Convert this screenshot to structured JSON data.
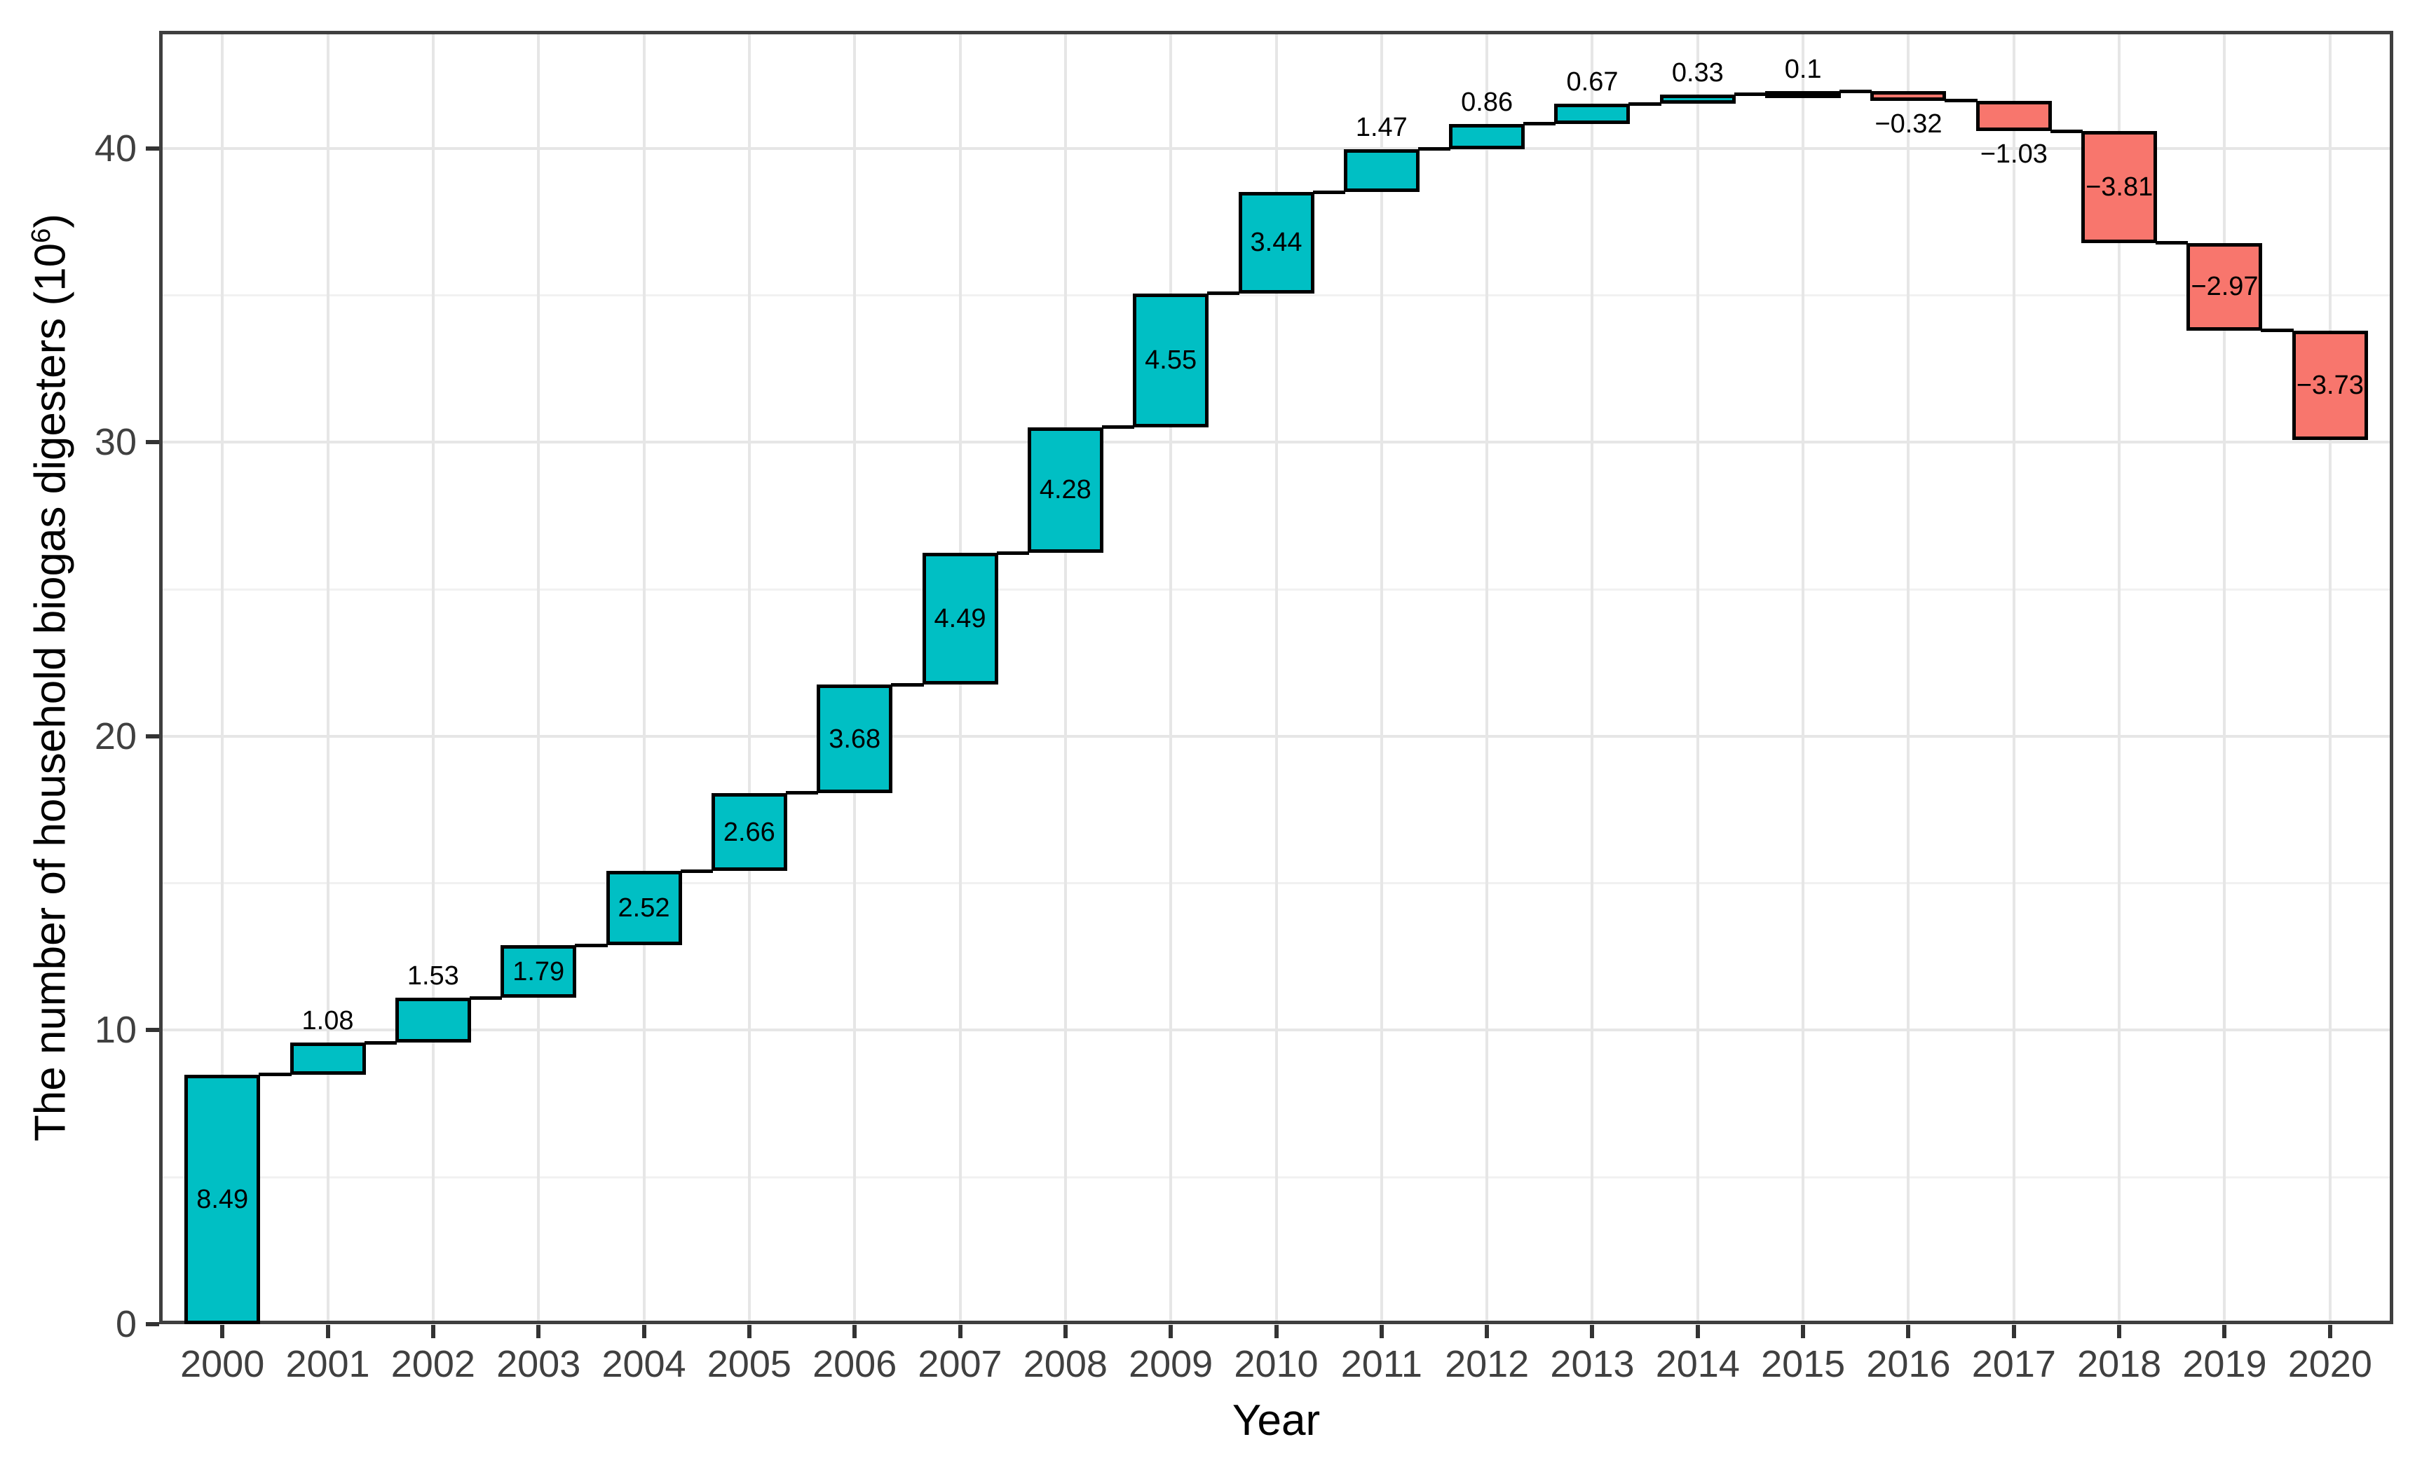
{
  "chart_data": {
    "type": "bar",
    "subtype": "waterfall",
    "title": "",
    "xlabel": "Year",
    "ylabel_plain": "The number of household biogas digesters (10^6)",
    "ylabel_main": "The number of household biogas digesters (10",
    "ylabel_sup_exponent": "6",
    "ylabel_close": ")",
    "categories": [
      "2000",
      "2001",
      "2002",
      "2003",
      "2004",
      "2005",
      "2006",
      "2007",
      "2008",
      "2009",
      "2010",
      "2011",
      "2012",
      "2013",
      "2014",
      "2015",
      "2016",
      "2017",
      "2018",
      "2019",
      "2020"
    ],
    "values": [
      8.49,
      1.08,
      1.53,
      1.79,
      2.52,
      2.66,
      3.68,
      4.49,
      4.28,
      4.55,
      3.44,
      1.47,
      0.86,
      0.67,
      0.33,
      0.1,
      -0.32,
      -1.03,
      -3.81,
      -2.97,
      -3.73
    ],
    "bar_labels": [
      "8.49",
      "1.08",
      "1.53",
      "1.79",
      "2.52",
      "2.66",
      "3.68",
      "4.49",
      "4.28",
      "4.55",
      "3.44",
      "1.47",
      "0.86",
      "0.67",
      "0.33",
      "0.1",
      "−0.32",
      "−1.03",
      "−3.81",
      "−2.97",
      "−3.73"
    ],
    "label_positions": [
      "inside",
      "above",
      "above",
      "inside",
      "inside",
      "inside",
      "inside",
      "inside",
      "inside",
      "inside",
      "inside",
      "above",
      "above",
      "above",
      "above",
      "above",
      "below",
      "below",
      "inside",
      "inside",
      "inside"
    ],
    "yticks": [
      0,
      10,
      20,
      30,
      40
    ],
    "yticks_minor": [
      5,
      15,
      25,
      35
    ],
    "ylim": [
      0,
      44
    ],
    "grid": "on",
    "legend_position": "none",
    "colors": {
      "positive_bar": "#00BFC4",
      "negative_bar": "#F8766D",
      "bar_border": "#000000",
      "grid_major": "#e6e6e6",
      "grid_minor": "#f1f1f1",
      "panel_border": "#3f3f3f",
      "tick_mark": "#333333",
      "tick_label": "#404040",
      "bar_label": "#000000",
      "axis_title": "#000000",
      "background": "#ffffff"
    }
  }
}
